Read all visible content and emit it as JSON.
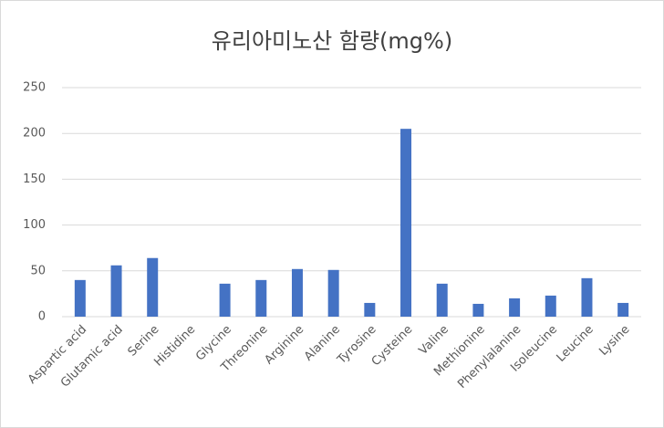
{
  "chart_data": {
    "type": "bar",
    "title": "유리아미노산 함량(mg%)",
    "categories": [
      "Aspartic acid",
      "Glutamic acid",
      "Serine",
      "Histidine",
      "Glycine",
      "Threonine",
      "Arginine",
      "Alanine",
      "Tyrosine",
      "Cysteine",
      "Valine",
      "Methionine",
      "Phenylalanine",
      "Isoleucine",
      "Leucine",
      "Lysine"
    ],
    "values": [
      40,
      56,
      64,
      0,
      36,
      40,
      52,
      51,
      15,
      205,
      36,
      14,
      20,
      23,
      42,
      15
    ],
    "color": "#4472c4",
    "ylim": [
      0,
      250
    ],
    "yticks": [
      0,
      50,
      100,
      150,
      200,
      250
    ],
    "grid": true
  }
}
